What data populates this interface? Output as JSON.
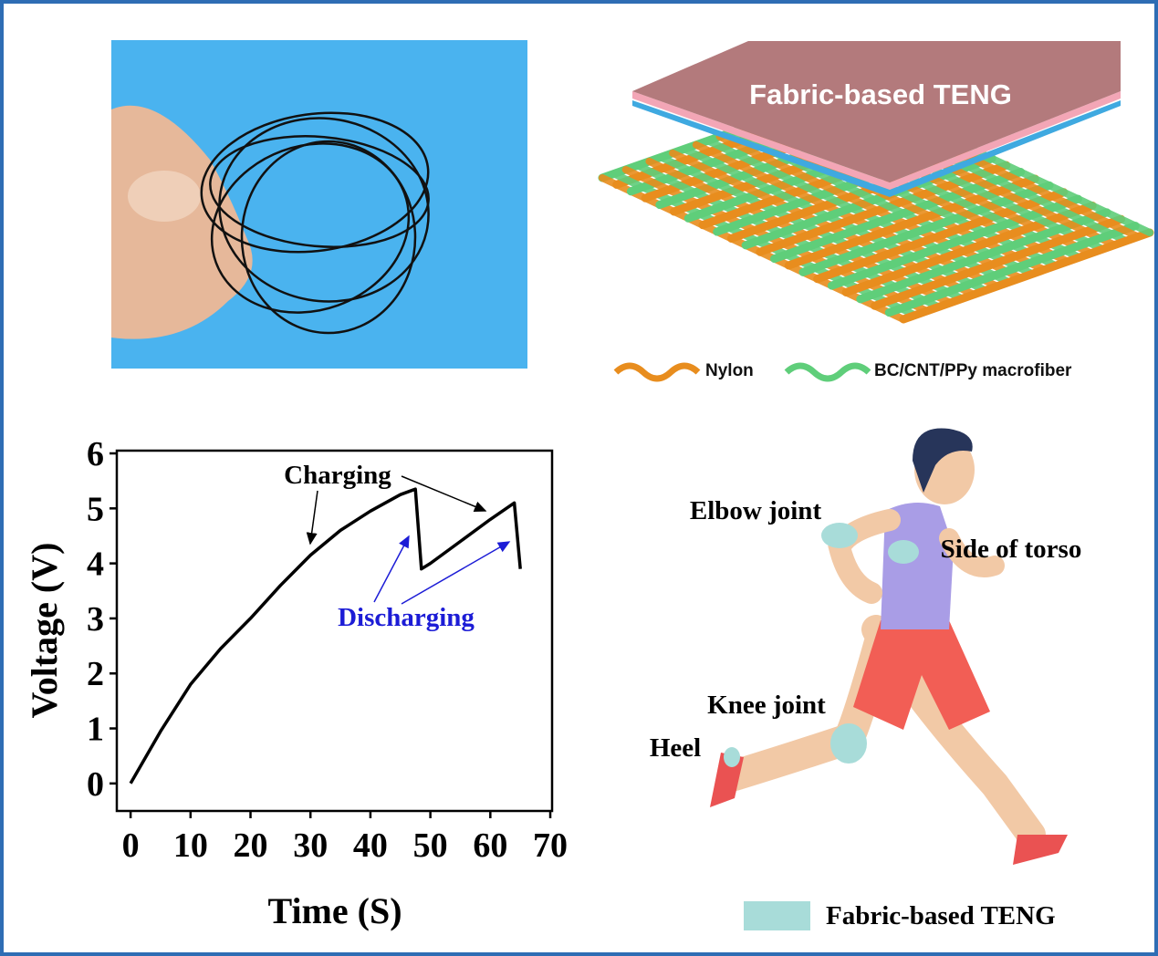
{
  "chart_data": {
    "type": "line",
    "xlabel": "Time (S)",
    "ylabel": "Voltage (V)",
    "x": [
      0,
      5,
      10,
      15,
      20,
      25,
      30,
      35,
      40,
      45,
      47.5,
      48.5,
      50,
      55,
      60,
      64,
      65
    ],
    "series": [
      {
        "color": "#000000",
        "values": [
          0,
          0.95,
          1.8,
          2.45,
          3.0,
          3.6,
          4.15,
          4.6,
          4.95,
          5.25,
          5.35,
          3.9,
          4.0,
          4.4,
          4.8,
          5.1,
          3.9
        ]
      }
    ],
    "xlim": [
      -2.3,
      70.3
    ],
    "ylim": [
      -0.5,
      6.05
    ],
    "xticks": [
      0,
      10,
      20,
      30,
      40,
      50,
      60,
      70
    ],
    "yticks": [
      0,
      1,
      2,
      3,
      4,
      5,
      6
    ],
    "annotations": [
      {
        "text": "Charging",
        "color": "#000000"
      },
      {
        "text": "Discharging",
        "color": "#1c1cd6"
      }
    ]
  },
  "teng_diagram": {
    "title": "Fabric-based TENG",
    "legend": [
      "Nylon",
      "BC/CNT/PPy macrofiber"
    ]
  },
  "runner": {
    "labels": [
      "Elbow joint",
      "Side of torso",
      "Knee joint",
      "Heel"
    ],
    "legend": "Fabric-based TENG"
  }
}
